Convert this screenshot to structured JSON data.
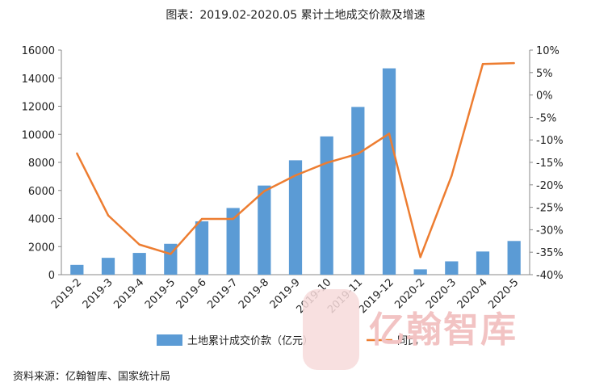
{
  "title": "图表：2019.02-2020.05 累计土地成交价款及增速",
  "source": "资料来源：亿翰智库、国家统计局",
  "watermark": "亿翰智库",
  "chart_data": {
    "type": "bar",
    "categories": [
      "2019-2",
      "2019-3",
      "2019-4",
      "2019-5",
      "2019-6",
      "2019-7",
      "2019-8",
      "2019-9",
      "2019-10",
      "2019-11",
      "2019-12",
      "2020-2",
      "2020-3",
      "2020-4",
      "2020-5"
    ],
    "series": [
      {
        "name": "土地累计成交价款（亿元）",
        "type": "bar",
        "axis": "left",
        "color": "#5b9bd5",
        "values": [
          700,
          1200,
          1550,
          2200,
          3800,
          4750,
          6350,
          8150,
          9850,
          11950,
          14700,
          380,
          950,
          1650,
          2400
        ]
      },
      {
        "name": "同比",
        "type": "line",
        "axis": "right",
        "color": "#ed7d31",
        "values": [
          -13.0,
          -26.8,
          -33.3,
          -35.4,
          -27.6,
          -27.6,
          -21.4,
          -17.9,
          -15.1,
          -13.1,
          -8.6,
          -36.1,
          -18.0,
          6.9,
          7.1
        ]
      }
    ],
    "y_left": {
      "min": 0,
      "max": 16000,
      "step": 2000,
      "ticks": [
        "0",
        "2000",
        "4000",
        "6000",
        "8000",
        "10000",
        "12000",
        "14000",
        "16000"
      ]
    },
    "y_right": {
      "min": -40,
      "max": 10,
      "step": 5,
      "ticks": [
        "-40%",
        "-35%",
        "-30%",
        "-25%",
        "-20%",
        "-15%",
        "-10%",
        "-5%",
        "0%",
        "5%",
        "10%"
      ]
    },
    "legend_position": "bottom",
    "grid": false
  }
}
